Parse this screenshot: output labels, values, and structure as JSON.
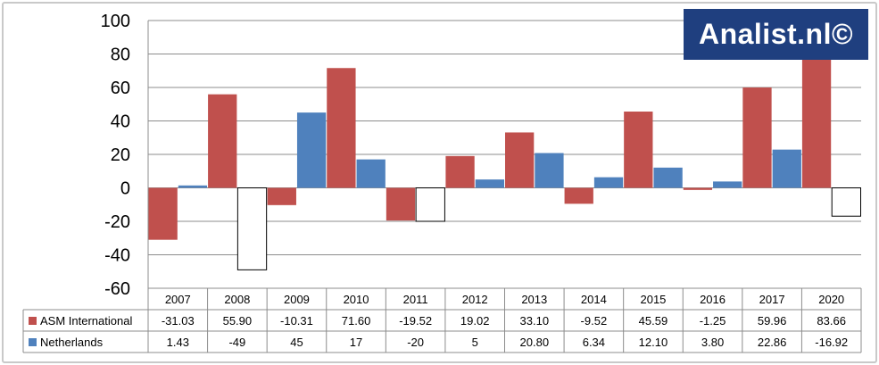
{
  "logo": "Analist.nl©",
  "chart_data": {
    "type": "bar",
    "categories": [
      "2007",
      "2008",
      "2009",
      "2010",
      "2011",
      "2012",
      "2013",
      "2014",
      "2015",
      "2016",
      "2017",
      "2020"
    ],
    "series": [
      {
        "name": "ASM International",
        "color": "#c0504d",
        "values": [
          -31.03,
          55.9,
          -10.31,
          71.6,
          -19.52,
          19.02,
          33.1,
          -9.52,
          45.59,
          -1.25,
          59.96,
          83.66
        ],
        "labels": [
          "-31.03",
          "55.90",
          "-10.31",
          "71.60",
          "-19.52",
          "19.02",
          "33.10",
          "-9.52",
          "45.59",
          "-1.25",
          "59.96",
          "83.66"
        ]
      },
      {
        "name": "Netherlands",
        "color": "#4f81bd",
        "values": [
          1.43,
          -49,
          45,
          17,
          -20,
          5,
          20.8,
          6.34,
          12.1,
          3.8,
          22.86,
          -16.92
        ],
        "labels": [
          "1.43",
          "-49",
          "45",
          "17",
          "-20",
          "5",
          "20.80",
          "6.34",
          "12.10",
          "3.80",
          "22.86",
          "-16.92"
        ],
        "negative_style": "white-fill-black-outline"
      }
    ],
    "ylim": [
      -60,
      100
    ],
    "yticks": [
      "-60",
      "-40",
      "-20",
      "0",
      "20",
      "40",
      "60",
      "80",
      "100"
    ],
    "grid": true,
    "legend": "data-table-below"
  }
}
